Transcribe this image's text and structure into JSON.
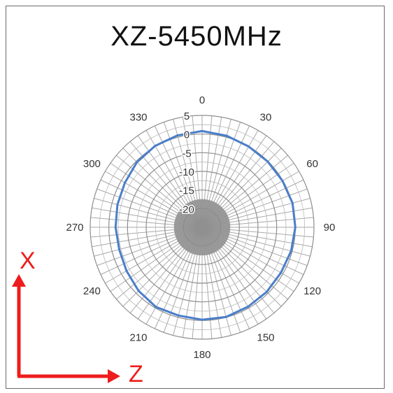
{
  "chart_data": {
    "type": "polar-line",
    "title": "XZ-5450MHz",
    "radial_ticks": [
      "5",
      "0",
      "-5",
      "-10",
      "-15",
      "-20"
    ],
    "radial_range": [
      -25,
      5
    ],
    "angle_ticks": [
      "0",
      "30",
      "60",
      "90",
      "120",
      "150",
      "180",
      "210",
      "240",
      "270",
      "300",
      "330"
    ],
    "series": [
      {
        "color": "#4a7ec9",
        "angles": [
          0,
          15,
          30,
          45,
          60,
          75,
          90,
          105,
          120,
          135,
          150,
          165,
          180,
          195,
          210,
          225,
          240,
          255,
          270,
          285,
          300,
          315,
          330,
          345
        ],
        "values": [
          0.8,
          0.4,
          0.0,
          -0.1,
          -0.1,
          0.1,
          0.0,
          -0.3,
          -0.6,
          -0.5,
          -0.4,
          -0.1,
          -0.2,
          -0.5,
          -0.3,
          -0.9,
          -1.6,
          -2.0,
          -1.8,
          -1.5,
          -1.1,
          -0.3,
          0.2,
          0.5
        ]
      }
    ],
    "grid": true
  },
  "axis_indicator": {
    "vertical_label": "X",
    "horizontal_label": "Z",
    "color": "#ee1c1c"
  }
}
